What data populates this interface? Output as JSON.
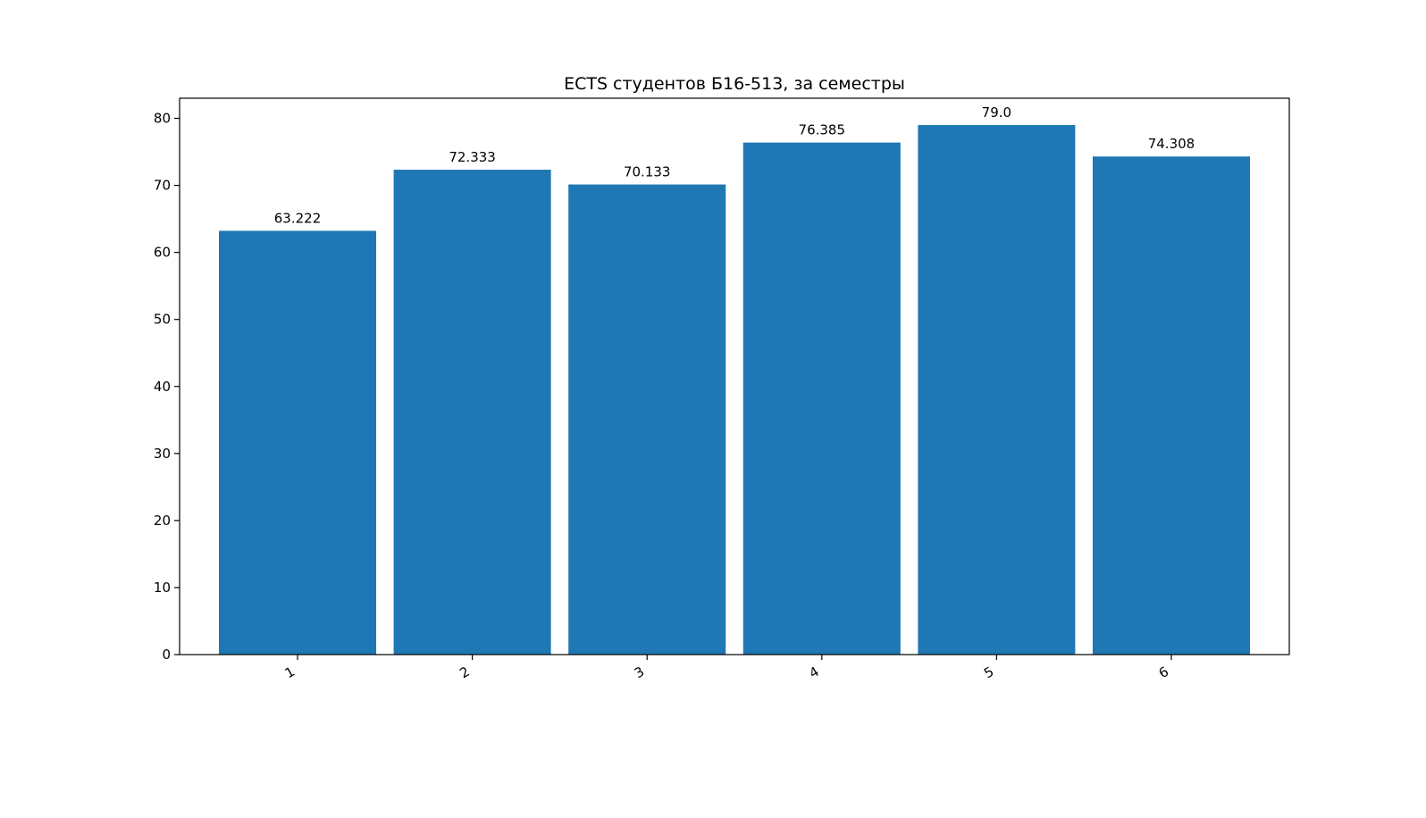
{
  "chart_data": {
    "type": "bar",
    "title": "ECTS студентов Б16-513, за семестры",
    "xlabel": "",
    "ylabel": "",
    "categories": [
      "1",
      "2",
      "3",
      "4",
      "5",
      "6"
    ],
    "values": [
      63.222,
      72.333,
      70.133,
      76.385,
      79.0,
      74.308
    ],
    "data_labels": [
      "63.222",
      "72.333",
      "70.133",
      "76.385",
      "79.0",
      "74.308"
    ],
    "ylim": [
      0,
      83
    ],
    "yticks": [
      0,
      10,
      20,
      30,
      40,
      50,
      60,
      70,
      80
    ],
    "bar_color": "#1f77b4",
    "grid": false,
    "legend": "none",
    "xtick_rotation": "rotated"
  }
}
